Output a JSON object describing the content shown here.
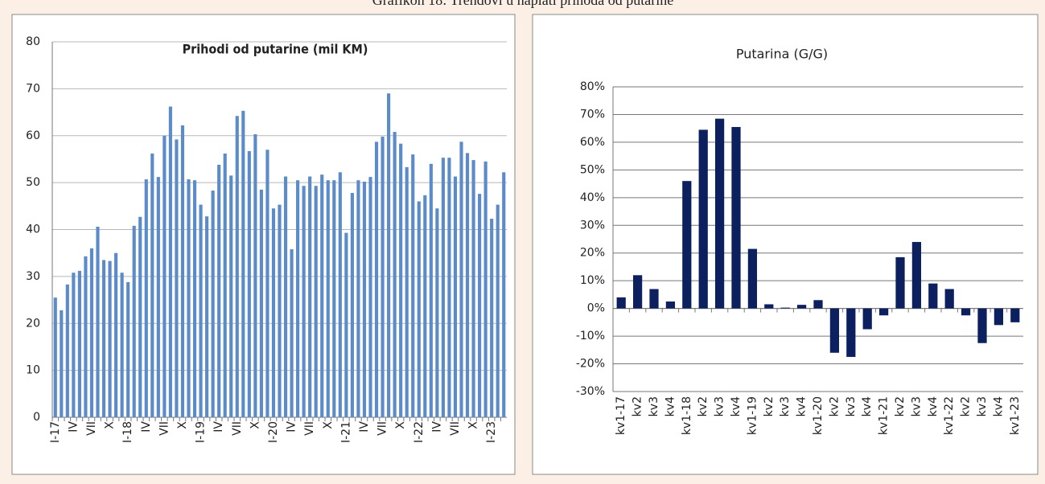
{
  "caption": "Grafikon 18: Trendovi u naplati prihoda od putarine",
  "chart_data": [
    {
      "type": "bar",
      "title": "Prihodi od putarine (mil KM)",
      "color": "#5b8bc8",
      "grid": true,
      "categories": [
        "I-17",
        null,
        null,
        "IV",
        null,
        null,
        "VII",
        null,
        null,
        "X",
        null,
        null,
        "I-18",
        null,
        null,
        "IV",
        null,
        null,
        "VII",
        null,
        null,
        "X",
        null,
        null,
        "I-19",
        null,
        null,
        "IV",
        null,
        null,
        "VII",
        null,
        null,
        "X",
        null,
        null,
        "I-20",
        null,
        null,
        "IV",
        null,
        null,
        "VII",
        null,
        null,
        "X",
        null,
        null,
        "I-21",
        null,
        null,
        "IV",
        null,
        null,
        "VII",
        null,
        null,
        "X",
        null,
        null,
        "I-22",
        null,
        null,
        "IV",
        null,
        null,
        "VII",
        null,
        null,
        "X",
        null,
        null,
        "I-23",
        null,
        null
      ],
      "values": [
        25.5,
        22.8,
        28.3,
        30.8,
        31.2,
        34.3,
        36,
        40.6,
        33.5,
        33.3,
        35,
        30.8,
        28.8,
        40.8,
        42.7,
        50.7,
        56.2,
        51.2,
        60,
        66.2,
        59.2,
        62.2,
        50.7,
        50.5,
        45.3,
        42.8,
        48.3,
        53.8,
        56.2,
        51.5,
        64.2,
        65.3,
        56.7,
        60.3,
        48.5,
        57,
        44.5,
        45.3,
        51.3,
        35.8,
        50.5,
        49.3,
        51.3,
        49.3,
        51.7,
        50.5,
        50.5,
        52.2,
        39.3,
        47.8,
        50.5,
        50.2,
        51.2,
        58.7,
        59.8,
        69,
        60.8,
        58.3,
        53.3,
        56,
        46,
        47.3,
        54,
        44.5,
        55.3,
        55.3,
        51.3,
        58.7,
        56.3,
        54.8,
        47.6,
        54.5,
        42.3,
        45.3,
        52.2
      ],
      "ylim": [
        0,
        80
      ],
      "yticks": [
        0,
        10,
        20,
        30,
        40,
        50,
        60,
        70,
        80
      ]
    },
    {
      "type": "bar",
      "title": "Putarina (G/G)",
      "color": "#0c1f5e",
      "grid": true,
      "categories": [
        "kv1-17",
        "kv2",
        "kv3",
        "kv4",
        "kv1-18",
        "kv2",
        "kv3",
        "kv4",
        "kv1-19",
        "kv2",
        "kv3",
        "kv4",
        "kv1-20",
        "kv2",
        "kv3",
        "kv4",
        "kv1-21",
        "kv2",
        "kv3",
        "kv4",
        "kv1-22",
        "kv2",
        "kv3",
        "kv4",
        "kv1-23"
      ],
      "values": [
        4,
        12,
        7,
        2.5,
        46,
        64.5,
        68.5,
        65.5,
        21.5,
        1.5,
        0.3,
        1.3,
        3,
        -16,
        -17.5,
        -7.5,
        -2.5,
        18.5,
        24,
        9,
        7,
        -2.5,
        -12.5,
        -6,
        -5
      ],
      "ylim": [
        -30,
        80
      ],
      "yticks": [
        {
          "value": -30,
          "label": "-30%"
        },
        {
          "value": -20,
          "label": "-20%"
        },
        {
          "value": -10,
          "label": "-10%"
        },
        {
          "value": 0,
          "label": "0%"
        },
        {
          "value": 10,
          "label": "10%"
        },
        {
          "value": 20,
          "label": "20%"
        },
        {
          "value": 30,
          "label": "30%"
        },
        {
          "value": 40,
          "label": "40%"
        },
        {
          "value": 50,
          "label": "50%"
        },
        {
          "value": 60,
          "label": "60%"
        },
        {
          "value": 70,
          "label": "70%"
        },
        {
          "value": 80,
          "label": "80%"
        }
      ]
    }
  ]
}
